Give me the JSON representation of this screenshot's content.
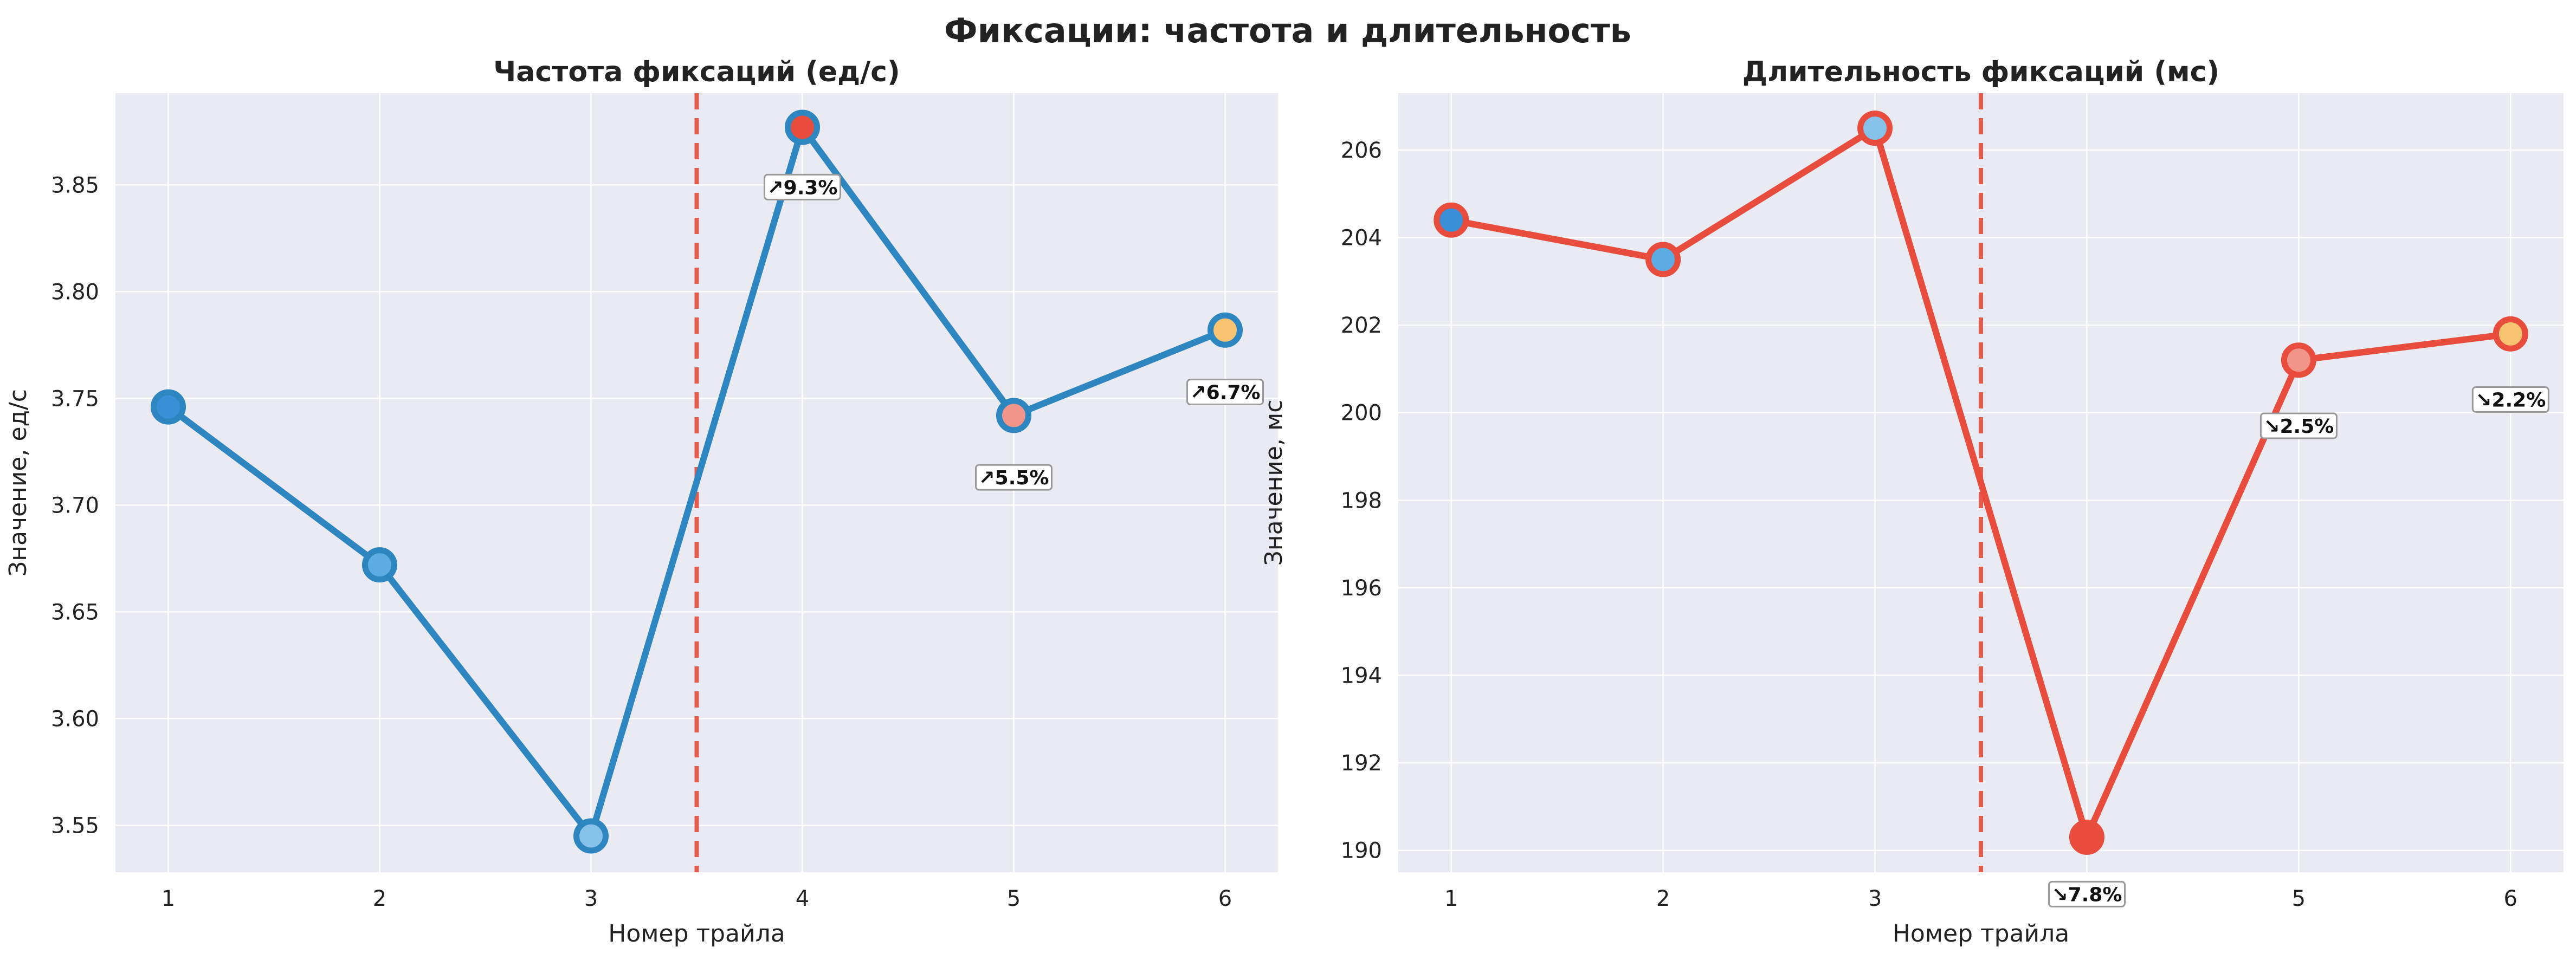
{
  "figure": {
    "suptitle": "Фиксации: частота и длительность"
  },
  "chart_data": [
    {
      "type": "line",
      "title": "Частота фиксаций (ед/с)",
      "xlabel": "Номер трайла",
      "ylabel": "Значение, ед/с",
      "x": [
        1,
        2,
        3,
        4,
        5,
        6
      ],
      "x_ticks": [
        "1",
        "2",
        "3",
        "4",
        "5",
        "6"
      ],
      "xlim": [
        0.75,
        6.25
      ],
      "ylim": [
        3.528,
        3.893
      ],
      "y_ticks": [
        3.55,
        3.6,
        3.65,
        3.7,
        3.75,
        3.8,
        3.85
      ],
      "y_tick_labels": [
        "3.55",
        "3.60",
        "3.65",
        "3.70",
        "3.75",
        "3.80",
        "3.85"
      ],
      "grid": true,
      "line_color": "#2e86c1",
      "series": [
        {
          "values": [
            3.746,
            3.672,
            3.545,
            3.877,
            3.742,
            3.782
          ]
        }
      ],
      "marker_colors": [
        "#3a8fd6",
        "#5dade2",
        "#85c1e9",
        "#e74c3c",
        "#f1948a",
        "#f8c471"
      ],
      "marker_edge": "#2e86c1",
      "divider_x": 3.5,
      "divider_color": "#e74c3c",
      "annotations": [
        {
          "x": 4,
          "y": 3.849,
          "text": "↗9.3%"
        },
        {
          "x": 5,
          "y": 3.713,
          "text": "↗5.5%"
        },
        {
          "x": 6,
          "y": 3.753,
          "text": "↗6.7%"
        }
      ]
    },
    {
      "type": "line",
      "title": "Длительность фиксаций (мс)",
      "xlabel": "Номер трайла",
      "ylabel": "Значение, мс",
      "x": [
        1,
        2,
        3,
        4,
        5,
        6
      ],
      "x_ticks": [
        "1",
        "2",
        "3",
        "4",
        "5",
        "6"
      ],
      "xlim": [
        0.75,
        6.25
      ],
      "ylim": [
        189.5,
        207.3
      ],
      "y_ticks": [
        190,
        192,
        194,
        196,
        198,
        200,
        202,
        204,
        206
      ],
      "y_tick_labels": [
        "190",
        "192",
        "194",
        "196",
        "198",
        "200",
        "202",
        "204",
        "206"
      ],
      "grid": true,
      "line_color": "#e74c3c",
      "series": [
        {
          "values": [
            204.4,
            203.5,
            206.5,
            190.3,
            201.2,
            201.8
          ]
        }
      ],
      "marker_colors": [
        "#3a8fd6",
        "#5dade2",
        "#85c1e9",
        "#e74c3c",
        "#f1948a",
        "#f8c471"
      ],
      "marker_edge": "#e74c3c",
      "divider_x": 3.5,
      "divider_color": "#e74c3c",
      "annotations": [
        {
          "x": 4,
          "y": 189.0,
          "text": "↘7.8%"
        },
        {
          "x": 5,
          "y": 199.7,
          "text": "↘2.5%"
        },
        {
          "x": 6,
          "y": 200.3,
          "text": "↘2.2%"
        }
      ]
    }
  ]
}
